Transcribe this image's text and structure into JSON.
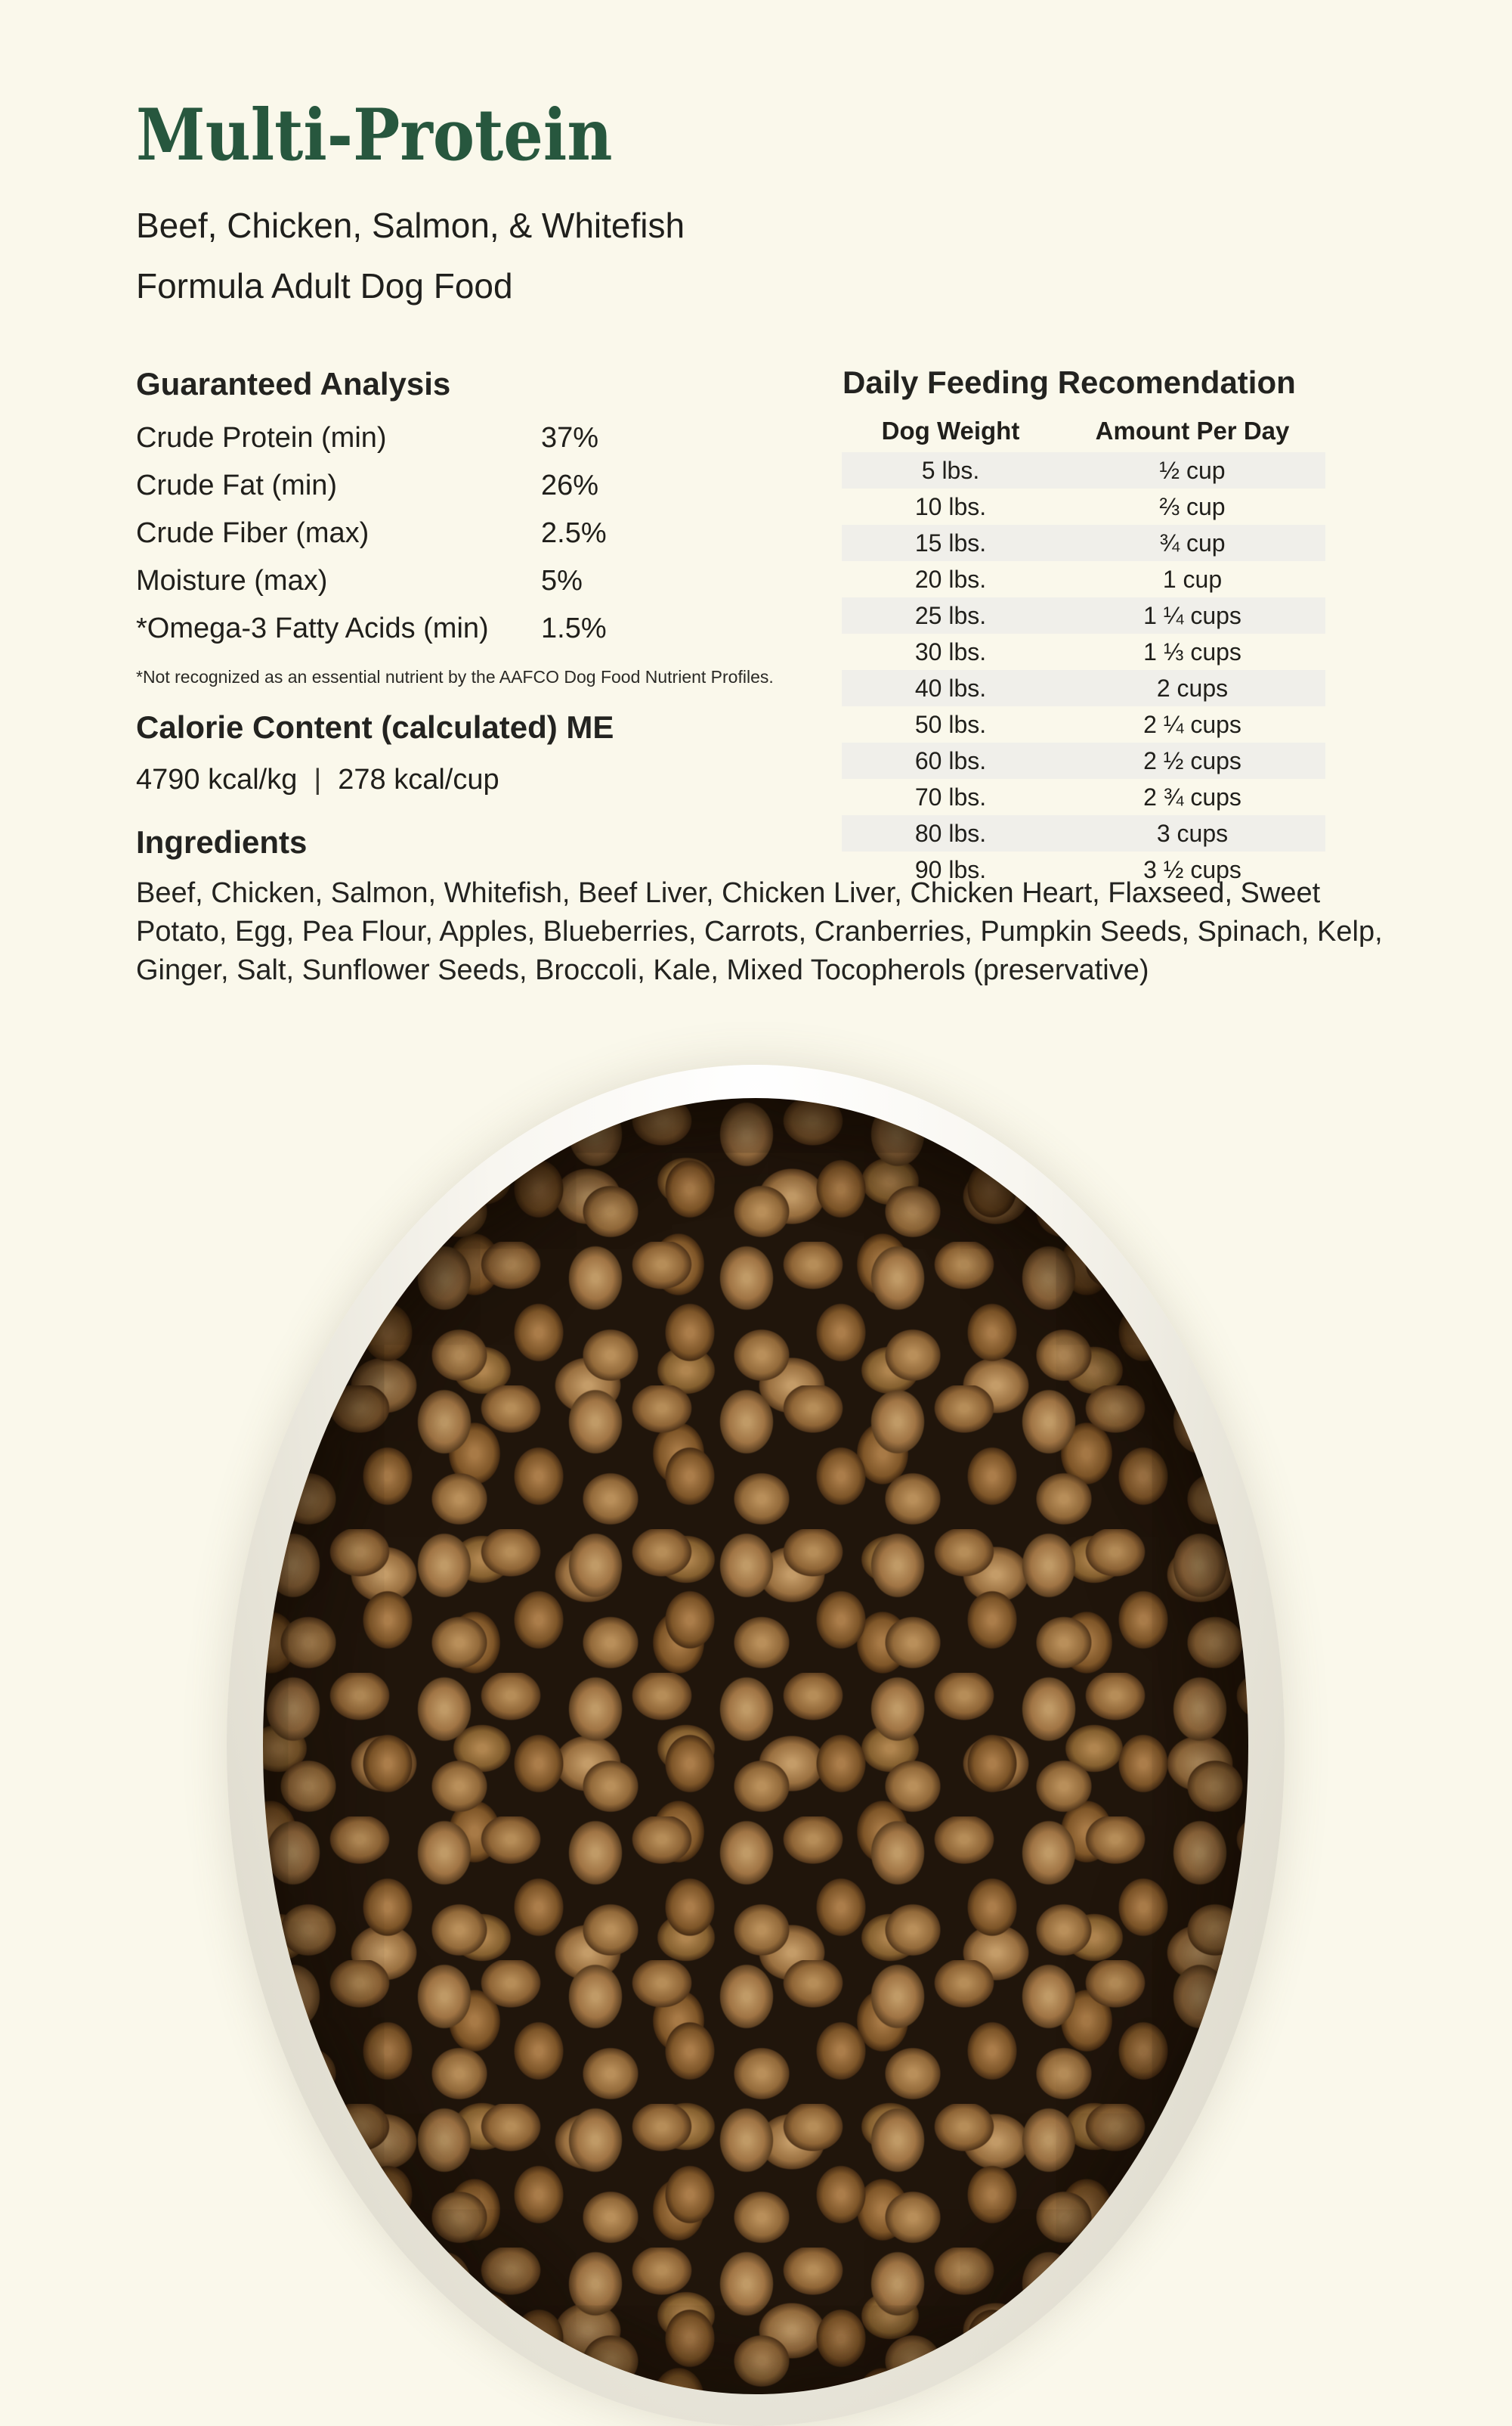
{
  "colors": {
    "background": "#faf8eb",
    "title_green": "#27573e",
    "text_dark": "#201f1b",
    "table_stripe": "#f0efea",
    "bowl_rim": "#f6f4ee",
    "kibble_brown": "#a87c4a"
  },
  "header": {
    "title": "Multi-Protein",
    "subtitle_lines": [
      "Beef, Chicken, Salmon, & Whitefish",
      "Formula Adult Dog Food"
    ]
  },
  "guaranteed_analysis": {
    "heading": "Guaranteed Analysis",
    "rows": [
      {
        "label": "Crude Protein (min)",
        "value": "37%"
      },
      {
        "label": "Crude Fat (min)",
        "value": "26%"
      },
      {
        "label": "Crude Fiber (max)",
        "value": "2.5%"
      },
      {
        "label": "Moisture (max)",
        "value": "5%"
      },
      {
        "label": "*Omega-3 Fatty Acids (min)",
        "value": "1.5%"
      }
    ],
    "footnote": "*Not recognized as an essential nutrient by the AAFCO Dog Food Nutrient Profiles."
  },
  "calorie_content": {
    "heading": "Calorie Content (calculated) ME",
    "kcal_per_kg": "4790 kcal/kg",
    "separator": "|",
    "kcal_per_cup": "278 kcal/cup"
  },
  "ingredients": {
    "heading": "Ingredients",
    "text": "Beef, Chicken, Salmon, Whitefish, Beef Liver, Chicken Liver, Chicken Heart, Flaxseed, Sweet Potato, Egg, Pea Flour, Apples, Blueberries, Carrots, Cranberries, Pumpkin Seeds, Spinach, Kelp, Ginger, Salt, Sunflower Seeds, Broccoli, Kale, Mixed Tocopherols (preservative)"
  },
  "feeding": {
    "heading": "Daily Feeding Recomendation",
    "columns": [
      "Dog Weight",
      "Amount Per Day"
    ],
    "rows": [
      {
        "weight": "5 lbs.",
        "amount": "½ cup"
      },
      {
        "weight": "10 lbs.",
        "amount": "⅔ cup"
      },
      {
        "weight": "15 lbs.",
        "amount": "¾ cup"
      },
      {
        "weight": "20 lbs.",
        "amount": "1 cup"
      },
      {
        "weight": "25 lbs.",
        "amount": "1 ¼ cups"
      },
      {
        "weight": "30 lbs.",
        "amount": "1 ⅓ cups"
      },
      {
        "weight": "40 lbs.",
        "amount": "2 cups"
      },
      {
        "weight": "50 lbs.",
        "amount": "2 ¼ cups"
      },
      {
        "weight": "60 lbs.",
        "amount": "2 ½ cups"
      },
      {
        "weight": "70 lbs.",
        "amount": "2 ¾ cups"
      },
      {
        "weight": "80 lbs.",
        "amount": "3 cups"
      },
      {
        "weight": "90 lbs.",
        "amount": "3 ½ cups"
      }
    ]
  }
}
